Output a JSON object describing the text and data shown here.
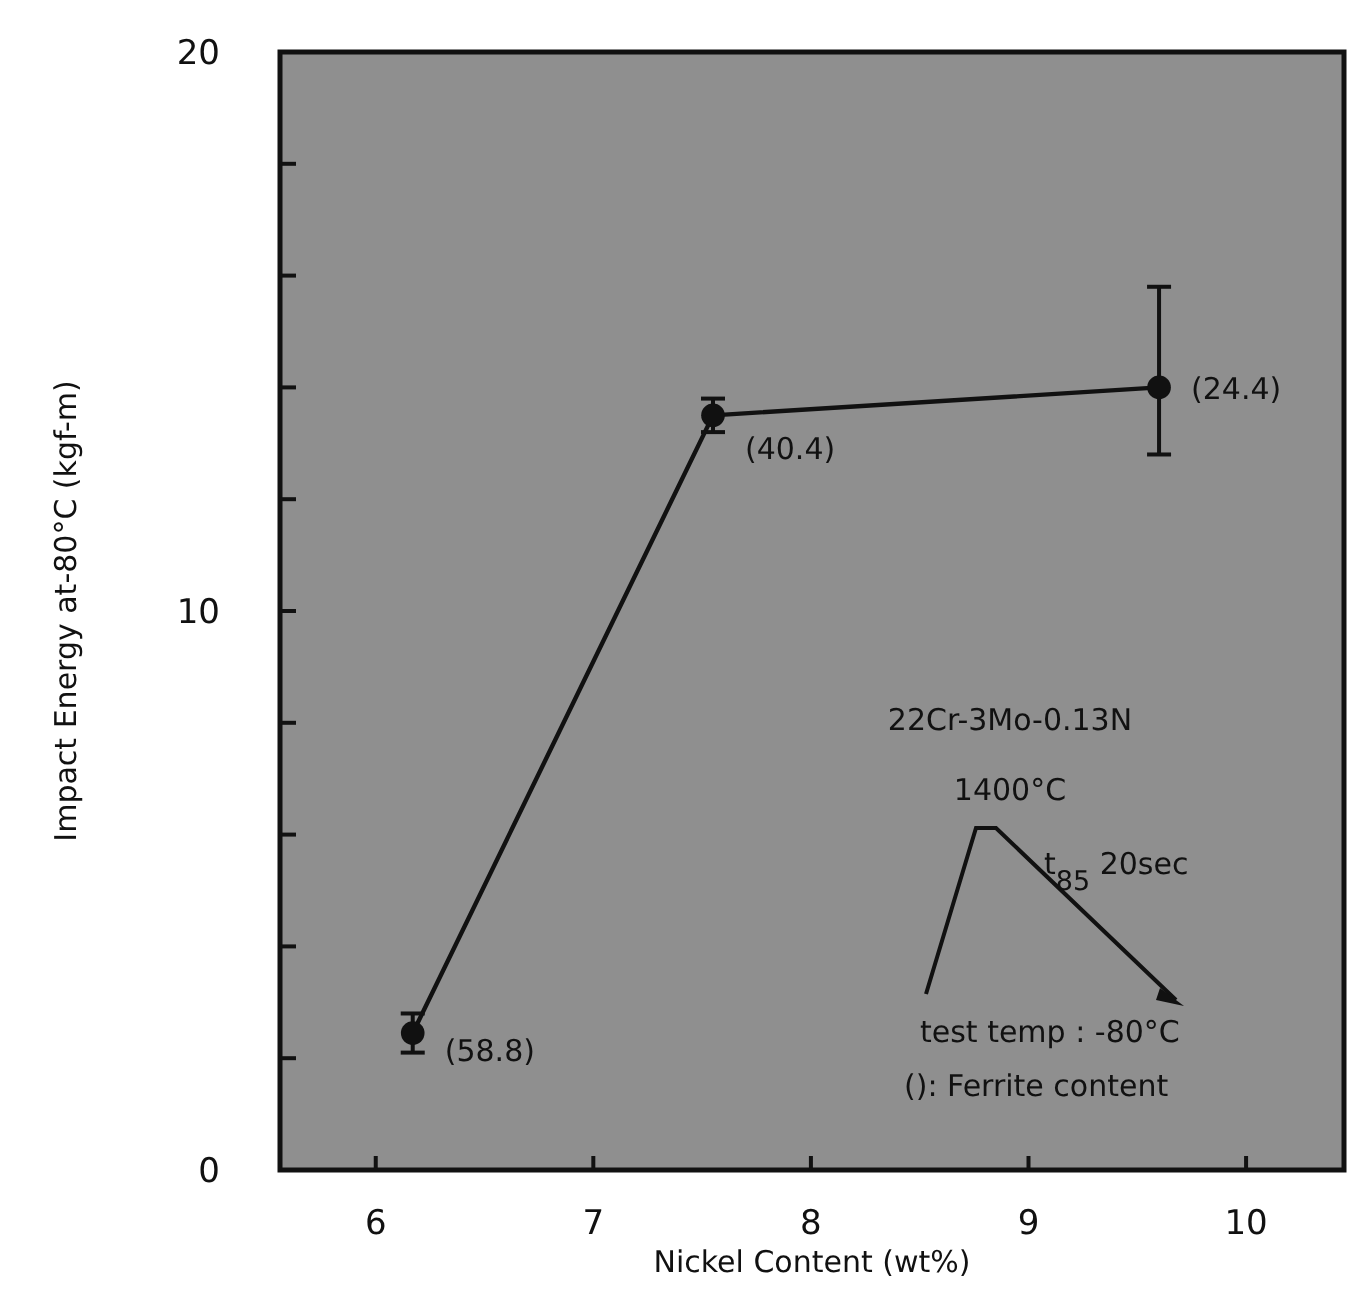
{
  "chart_data": {
    "type": "line",
    "xlabel": "Nickel Content (wt%)",
    "ylabel": "Impact Energy at-80°C (kgf-m)",
    "x": [
      6.17,
      7.55,
      9.6
    ],
    "series": [
      {
        "color": "#111111",
        "values": [
          2.45,
          13.5,
          14.0
        ],
        "errors": [
          [
            2.1,
            2.8
          ],
          [
            13.2,
            13.8
          ],
          [
            12.8,
            15.8
          ]
        ]
      }
    ],
    "marker": "circle",
    "line_style": "solid",
    "xlim": [
      5.56,
      10.45
    ],
    "xticks": [
      6,
      7,
      8,
      9,
      10
    ],
    "ylim": [
      0,
      20
    ],
    "yticks": [
      0,
      {
        "value": 2,
        "label": null
      },
      {
        "value": 4,
        "label": null
      },
      {
        "value": 6,
        "label": null
      },
      {
        "value": 8,
        "label": null
      },
      10,
      {
        "value": 12,
        "label": null
      },
      {
        "value": 14,
        "label": null
      },
      {
        "value": 16,
        "label": null
      },
      {
        "value": 18,
        "label": null
      },
      20
    ],
    "grid": false,
    "annotations": [
      {
        "text": "(58.8)",
        "x": 6.17,
        "y": 2.45
      },
      {
        "text": "(40.4)",
        "x": 7.55,
        "y": 13.5
      },
      {
        "text": "(24.4)",
        "x": 9.6,
        "y": 14.0
      },
      "22Cr-3Mo-0.13N",
      "1400°C",
      "t$_{85}$ 20sec",
      "test temp : -80°C",
      "(): Ferrite content"
    ]
  }
}
